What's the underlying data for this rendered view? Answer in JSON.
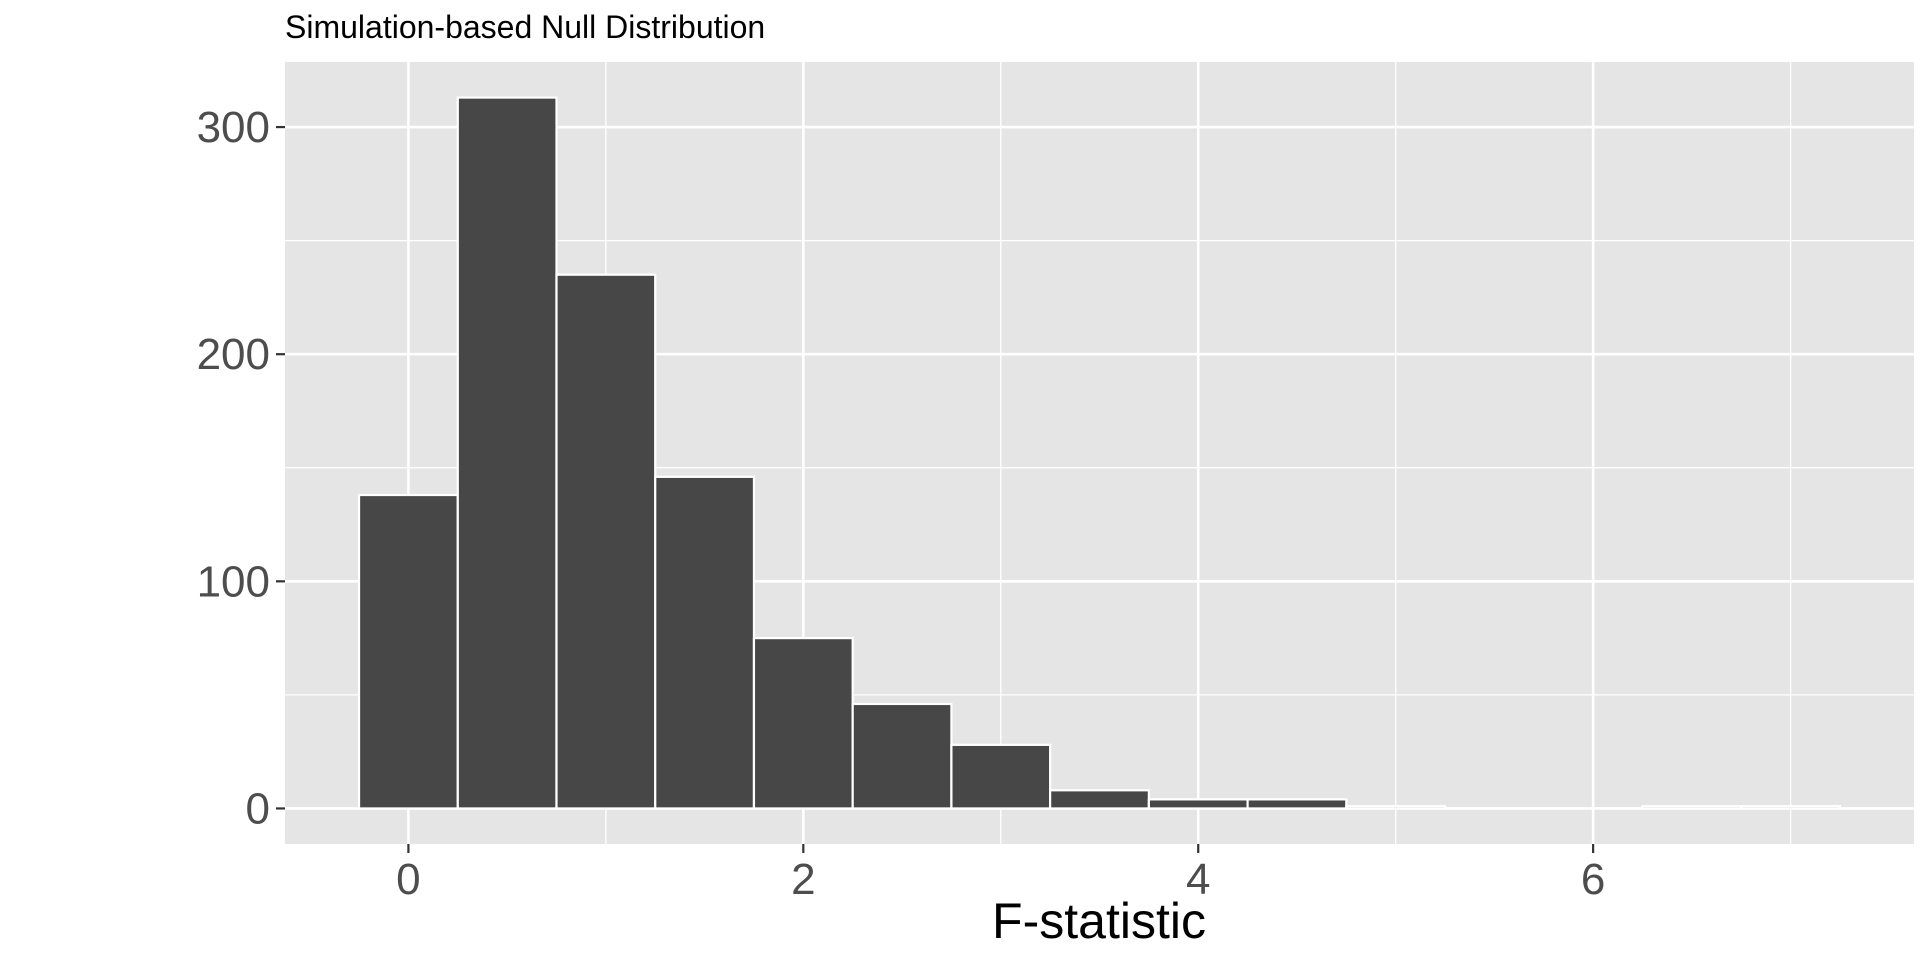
{
  "chart_data": {
    "type": "bar",
    "title": "Simulation-based Null Distribution",
    "xlabel": "F-statistic",
    "ylabel": "",
    "bin_width": 0.5,
    "bins": [
      {
        "x": 0.0,
        "count": 138
      },
      {
        "x": 0.5,
        "count": 313
      },
      {
        "x": 1.0,
        "count": 235
      },
      {
        "x": 1.5,
        "count": 146
      },
      {
        "x": 2.0,
        "count": 75
      },
      {
        "x": 2.5,
        "count": 46
      },
      {
        "x": 3.0,
        "count": 28
      },
      {
        "x": 3.5,
        "count": 8
      },
      {
        "x": 4.0,
        "count": 4
      },
      {
        "x": 4.5,
        "count": 4
      },
      {
        "x": 5.0,
        "count": 1
      },
      {
        "x": 5.5,
        "count": 0
      },
      {
        "x": 6.0,
        "count": 0
      },
      {
        "x": 6.5,
        "count": 1
      },
      {
        "x": 7.0,
        "count": 1
      }
    ],
    "xlim": [
      -0.625,
      7.625
    ],
    "ylim": [
      -15.65,
      328.65
    ],
    "x_ticks": [
      0,
      2,
      4,
      6
    ],
    "x_tick_labels": [
      "0",
      "2",
      "4",
      "6"
    ],
    "x_minor_ticks": [
      1,
      3,
      5,
      7
    ],
    "y_ticks": [
      0,
      100,
      200,
      300
    ],
    "y_tick_labels": [
      "0",
      "100",
      "200",
      "300"
    ],
    "y_minor_ticks": [
      50,
      150,
      250
    ],
    "grid": true,
    "colors": {
      "panel_background": "#e5e5e5",
      "grid_line": "#ffffff",
      "bar_fill": "#474747",
      "bar_outline": "#ffffff",
      "tick_label": "#4d4d4d",
      "tick_mark": "#333333"
    }
  }
}
